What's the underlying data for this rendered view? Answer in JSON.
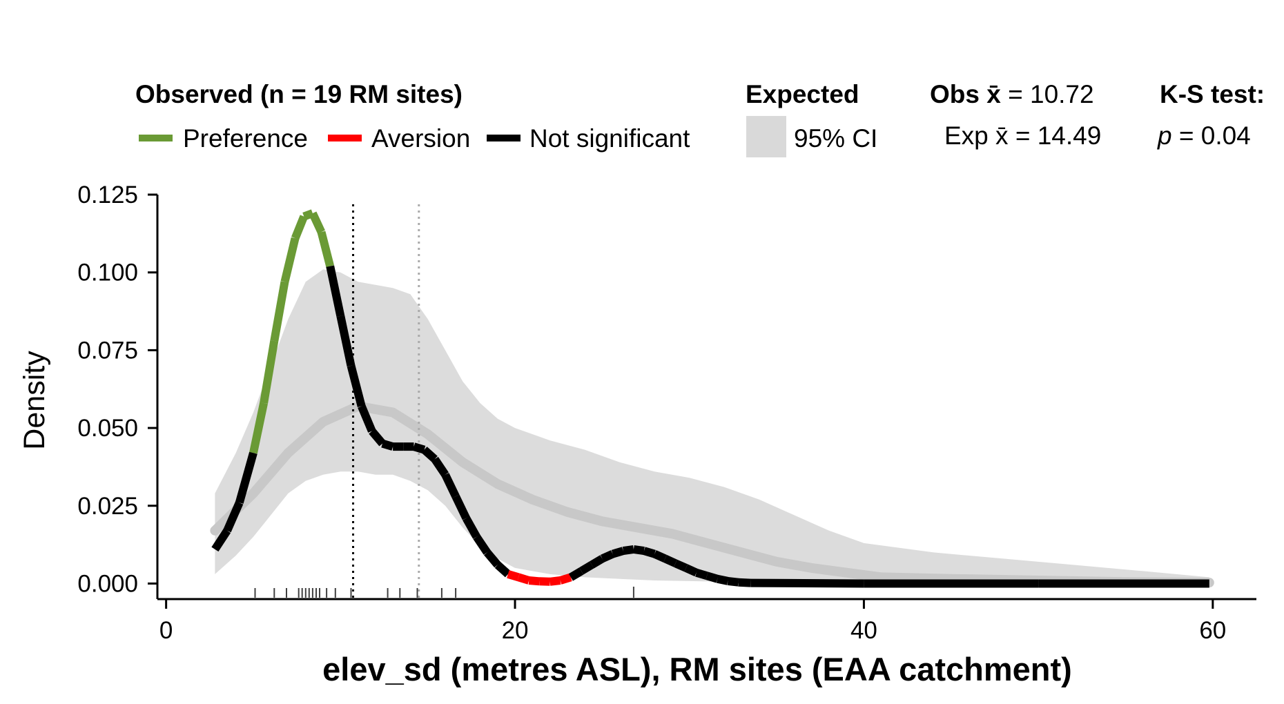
{
  "chart_data": {
    "type": "line",
    "xlabel": "elev_sd (metres ASL), RM sites (EAA catchment)",
    "ylabel": "Density",
    "xlim": [
      -0.5,
      62.5
    ],
    "ylim": [
      -0.005,
      0.125
    ],
    "x_ticks": [
      "0",
      "20",
      "40",
      "60"
    ],
    "y_ticks": [
      "0.000",
      "0.025",
      "0.050",
      "0.075",
      "0.100",
      "0.125"
    ],
    "x_tick_values": [
      0,
      20,
      40,
      60
    ],
    "y_tick_values": [
      0,
      0.025,
      0.05,
      0.075,
      0.1,
      0.125
    ],
    "grid": false,
    "legend": {
      "observed_title": "Observed (n = 19 RM sites)",
      "items": [
        {
          "label": "Preference",
          "color": "#6a9a35"
        },
        {
          "label": "Aversion",
          "color": "#ff0000"
        },
        {
          "label": "Not significant",
          "color": "#000000"
        }
      ],
      "expected_title": "Expected",
      "ci_label": "95% CI",
      "ci_color": "#d9d9d9",
      "obs_mean_label": "Obs",
      "obs_mean_symbol": "x̄",
      "obs_mean_value": "= 10.72",
      "exp_mean_label": "Exp",
      "exp_mean_symbol": "x̄",
      "exp_mean_value": "= 14.49",
      "ks_title": "K-S test:",
      "ks_p_symbol": "p",
      "ks_p_value": "= 0.04"
    },
    "obs_mean": 10.72,
    "exp_mean": 14.49,
    "observed_density": {
      "x": [
        2.8,
        3.5,
        4.2,
        5,
        5.6,
        6.2,
        6.8,
        7.4,
        7.9,
        8.4,
        8.9,
        9.4,
        10,
        10.6,
        11.2,
        11.8,
        12.4,
        13,
        13.6,
        14.2,
        14.8,
        15.4,
        16,
        16.6,
        17.2,
        17.8,
        18.4,
        19,
        19.6,
        20.2,
        20.8,
        21.4,
        22,
        22.6,
        23.2,
        23.8,
        24.4,
        25,
        25.6,
        26.2,
        26.8,
        27.4,
        28,
        28.6,
        29.2,
        29.8,
        30.4,
        31,
        31.6,
        32.2,
        32.8,
        33.5,
        40,
        50,
        59.8
      ],
      "y": [
        0.011,
        0.017,
        0.026,
        0.042,
        0.058,
        0.078,
        0.097,
        0.111,
        0.118,
        0.119,
        0.113,
        0.102,
        0.086,
        0.07,
        0.057,
        0.049,
        0.045,
        0.044,
        0.044,
        0.044,
        0.043,
        0.04,
        0.035,
        0.028,
        0.021,
        0.015,
        0.01,
        0.006,
        0.003,
        0.002,
        0.001,
        0.0007,
        0.0006,
        0.001,
        0.002,
        0.004,
        0.006,
        0.008,
        0.0095,
        0.0105,
        0.011,
        0.0105,
        0.0095,
        0.008,
        0.0065,
        0.005,
        0.0035,
        0.0025,
        0.0015,
        0.0008,
        0.0004,
        0.0002,
        0.0,
        0.0,
        0.0
      ],
      "significance": [
        "ns",
        "ns",
        "ns",
        "ns",
        "pref",
        "pref",
        "pref",
        "pref",
        "pref",
        "pref",
        "pref",
        "pref",
        "ns",
        "ns",
        "ns",
        "ns",
        "ns",
        "ns",
        "ns",
        "ns",
        "ns",
        "ns",
        "ns",
        "ns",
        "ns",
        "ns",
        "ns",
        "ns",
        "ns",
        "aver",
        "aver",
        "aver",
        "aver",
        "aver",
        "aver",
        "ns",
        "ns",
        "ns",
        "ns",
        "ns",
        "ns",
        "ns",
        "ns",
        "ns",
        "ns",
        "ns",
        "ns",
        "ns",
        "ns",
        "ns",
        "ns",
        "ns",
        "ns",
        "ns",
        "ns"
      ]
    },
    "expected_mean": {
      "x": [
        2.8,
        5,
        7,
        9,
        11,
        13,
        15,
        17,
        19,
        21,
        23,
        25,
        27,
        29,
        31,
        33,
        35,
        37,
        39,
        41,
        45,
        50,
        55,
        59.8
      ],
      "y": [
        0.017,
        0.029,
        0.042,
        0.052,
        0.057,
        0.055,
        0.048,
        0.039,
        0.032,
        0.027,
        0.023,
        0.02,
        0.018,
        0.016,
        0.013,
        0.01,
        0.007,
        0.005,
        0.0035,
        0.002,
        0.0015,
        0.001,
        0.0005,
        0.0003
      ]
    },
    "expected_ci": {
      "x": [
        2.8,
        4,
        5,
        6,
        7,
        8,
        9,
        10,
        11,
        12,
        13,
        14,
        15,
        16,
        17,
        18,
        19,
        20,
        22,
        24,
        26,
        28,
        30,
        32,
        34,
        36,
        38,
        40,
        44,
        48,
        52,
        56,
        59.8
      ],
      "upper": [
        0.029,
        0.042,
        0.055,
        0.07,
        0.085,
        0.097,
        0.101,
        0.1,
        0.097,
        0.096,
        0.095,
        0.093,
        0.085,
        0.075,
        0.065,
        0.058,
        0.053,
        0.05,
        0.046,
        0.043,
        0.039,
        0.036,
        0.034,
        0.031,
        0.027,
        0.022,
        0.017,
        0.013,
        0.01,
        0.008,
        0.006,
        0.004,
        0.002
      ],
      "lower": [
        0.003,
        0.009,
        0.015,
        0.022,
        0.029,
        0.033,
        0.035,
        0.036,
        0.036,
        0.035,
        0.035,
        0.033,
        0.03,
        0.025,
        0.018,
        0.012,
        0.008,
        0.005,
        0.003,
        0.002,
        0.0015,
        0.001,
        0.0008,
        0.0006,
        0.0005,
        0.0004,
        0.0003,
        0.0003,
        0.0002,
        0.0002,
        0.0001,
        0.0001,
        0.0001
      ]
    },
    "rug": {
      "x": [
        5.1,
        6.2,
        6.9,
        7.6,
        7.8,
        8,
        8.2,
        8.4,
        8.6,
        8.8,
        9.2,
        9.7,
        10.6,
        12.7,
        13.4,
        14.4,
        15.8,
        16.6,
        26.8
      ],
      "tall": [
        false,
        false,
        false,
        false,
        false,
        false,
        false,
        false,
        false,
        false,
        false,
        false,
        false,
        false,
        false,
        false,
        false,
        false,
        true
      ]
    }
  }
}
